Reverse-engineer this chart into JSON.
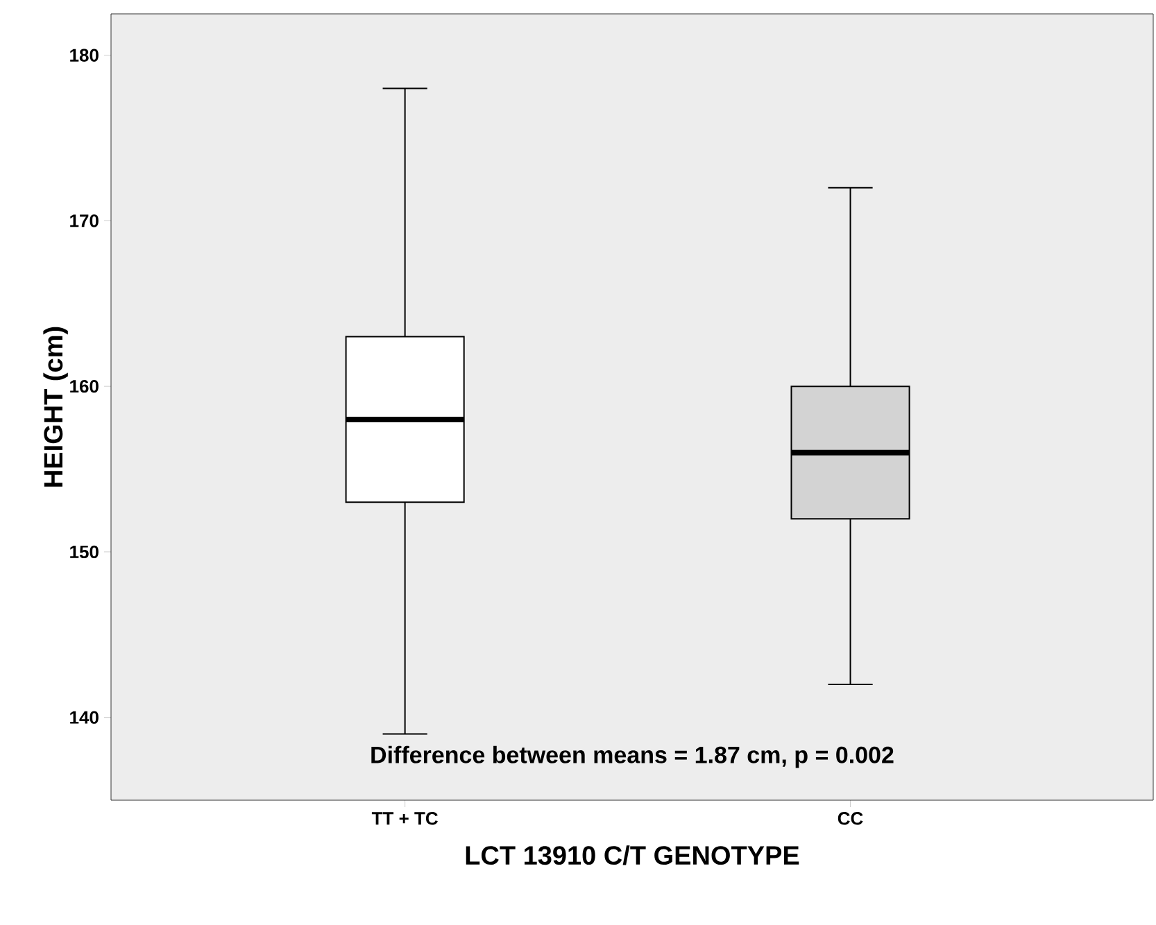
{
  "chart_data": {
    "type": "box",
    "xlabel": "LCT 13910 C/T GENOTYPE",
    "ylabel": "HEIGHT (cm)",
    "categories": [
      "TT + TC",
      "CC"
    ],
    "boxes": [
      {
        "low": 139,
        "q1": 153,
        "median": 158,
        "q3": 163,
        "high": 178
      },
      {
        "low": 142,
        "q1": 152,
        "median": 156,
        "q3": 160,
        "high": 172
      }
    ],
    "colors": [
      "#ffffff",
      "#d3d3d3"
    ],
    "ylim": [
      135,
      182.5
    ],
    "yticks": [
      140,
      150,
      160,
      170,
      180
    ],
    "grid": false,
    "annotations": [
      "Difference between means = 1.87 cm, p = 0.002"
    ]
  }
}
